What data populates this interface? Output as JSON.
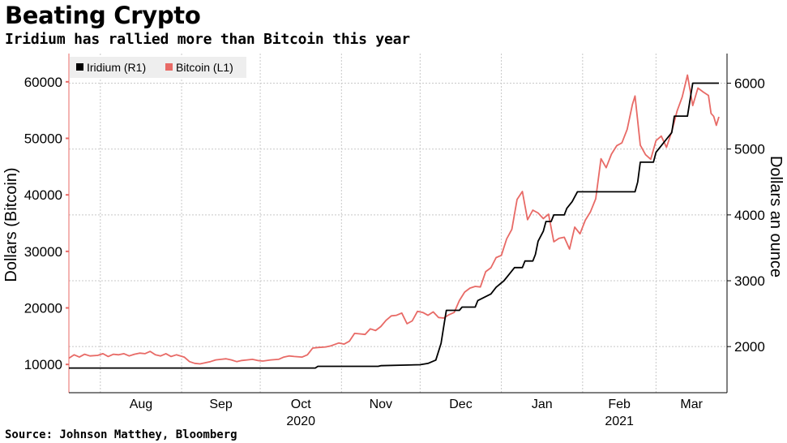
{
  "header": {
    "title": "Beating Crypto",
    "subtitle": "Iridium has rallied more than Bitcoin this year"
  },
  "footer": {
    "source": "Source: Johnson Matthey, Bloomberg"
  },
  "colors": {
    "iridium": "#000000",
    "bitcoin": "#e86a66",
    "grid": "#c8c8c8",
    "legend_bg": "#eeeeee"
  },
  "chart_data": {
    "type": "line",
    "title": "Beating Crypto",
    "subtitle": "Iridium has rallied more than Bitcoin this year",
    "legend": {
      "placement": "top-left",
      "entries": [
        "Iridium (R1)",
        "Bitcoin (L1)"
      ]
    },
    "grid": true,
    "x_axis": {
      "range": [
        "2020-07-20",
        "2021-03-25"
      ],
      "ticks": [
        "Aug",
        "Sep",
        "Oct",
        "Nov",
        "Dec",
        "Jan",
        "Feb",
        "Mar"
      ],
      "tick_dates": [
        "2020-08-01",
        "2020-09-01",
        "2020-10-01",
        "2020-11-01",
        "2020-12-01",
        "2021-01-01",
        "2021-02-01",
        "2021-03-01"
      ],
      "year_labels": [
        {
          "label": "2020",
          "date": "2020-10-01"
        },
        {
          "label": "2021",
          "date": "2021-02-01"
        }
      ]
    },
    "y_left": {
      "label": "Dollars (Bitcoin)",
      "range": [
        5000,
        65000
      ],
      "ticks": [
        10000,
        20000,
        30000,
        40000,
        50000,
        60000
      ]
    },
    "y_right": {
      "label": "Dollars an ounce",
      "range": [
        1300,
        6450
      ],
      "ticks": [
        2000,
        3000,
        4000,
        5000,
        6000
      ]
    },
    "series": [
      {
        "name": "Bitcoin (L1)",
        "axis": "left",
        "points": [
          [
            "2020-07-20",
            11100
          ],
          [
            "2020-07-22",
            11700
          ],
          [
            "2020-07-24",
            11300
          ],
          [
            "2020-07-26",
            11800
          ],
          [
            "2020-07-28",
            11500
          ],
          [
            "2020-07-31",
            11600
          ],
          [
            "2020-08-02",
            11900
          ],
          [
            "2020-08-04",
            11400
          ],
          [
            "2020-08-06",
            11800
          ],
          [
            "2020-08-08",
            11700
          ],
          [
            "2020-08-10",
            11900
          ],
          [
            "2020-08-12",
            11500
          ],
          [
            "2020-08-14",
            11800
          ],
          [
            "2020-08-16",
            12000
          ],
          [
            "2020-08-18",
            11900
          ],
          [
            "2020-08-20",
            12300
          ],
          [
            "2020-08-22",
            11700
          ],
          [
            "2020-08-24",
            11500
          ],
          [
            "2020-08-26",
            11900
          ],
          [
            "2020-08-28",
            11400
          ],
          [
            "2020-08-30",
            11700
          ],
          [
            "2020-09-02",
            11300
          ],
          [
            "2020-09-04",
            10500
          ],
          [
            "2020-09-06",
            10200
          ],
          [
            "2020-09-08",
            10100
          ],
          [
            "2020-09-10",
            10300
          ],
          [
            "2020-09-12",
            10500
          ],
          [
            "2020-09-14",
            10800
          ],
          [
            "2020-09-16",
            10900
          ],
          [
            "2020-09-18",
            11000
          ],
          [
            "2020-09-20",
            10800
          ],
          [
            "2020-09-22",
            10500
          ],
          [
            "2020-09-24",
            10700
          ],
          [
            "2020-09-26",
            10800
          ],
          [
            "2020-09-28",
            10900
          ],
          [
            "2020-09-30",
            10700
          ],
          [
            "2020-10-02",
            10600
          ],
          [
            "2020-10-05",
            10800
          ],
          [
            "2020-10-08",
            10900
          ],
          [
            "2020-10-10",
            11300
          ],
          [
            "2020-10-12",
            11500
          ],
          [
            "2020-10-14",
            11400
          ],
          [
            "2020-10-17",
            11300
          ],
          [
            "2020-10-19",
            11700
          ],
          [
            "2020-10-21",
            12900
          ],
          [
            "2020-10-23",
            13000
          ],
          [
            "2020-10-26",
            13100
          ],
          [
            "2020-10-28",
            13300
          ],
          [
            "2020-10-31",
            13800
          ],
          [
            "2020-11-02",
            13600
          ],
          [
            "2020-11-04",
            14100
          ],
          [
            "2020-11-06",
            15500
          ],
          [
            "2020-11-08",
            15400
          ],
          [
            "2020-11-10",
            15300
          ],
          [
            "2020-11-12",
            16300
          ],
          [
            "2020-11-14",
            16000
          ],
          [
            "2020-11-16",
            16700
          ],
          [
            "2020-11-18",
            17800
          ],
          [
            "2020-11-20",
            18600
          ],
          [
            "2020-11-22",
            18700
          ],
          [
            "2020-11-24",
            19100
          ],
          [
            "2020-11-26",
            17200
          ],
          [
            "2020-11-28",
            17700
          ],
          [
            "2020-11-30",
            19400
          ],
          [
            "2020-12-02",
            19200
          ],
          [
            "2020-12-04",
            18700
          ],
          [
            "2020-12-06",
            19300
          ],
          [
            "2020-12-08",
            18300
          ],
          [
            "2020-12-10",
            18200
          ],
          [
            "2020-12-12",
            18800
          ],
          [
            "2020-12-14",
            19200
          ],
          [
            "2020-12-16",
            21300
          ],
          [
            "2020-12-18",
            22800
          ],
          [
            "2020-12-20",
            23500
          ],
          [
            "2020-12-22",
            23800
          ],
          [
            "2020-12-24",
            23700
          ],
          [
            "2020-12-26",
            26400
          ],
          [
            "2020-12-28",
            27100
          ],
          [
            "2020-12-30",
            28900
          ],
          [
            "2021-01-01",
            29300
          ],
          [
            "2021-01-03",
            32200
          ],
          [
            "2021-01-05",
            33900
          ],
          [
            "2021-01-07",
            39200
          ],
          [
            "2021-01-09",
            40600
          ],
          [
            "2021-01-11",
            35600
          ],
          [
            "2021-01-13",
            37300
          ],
          [
            "2021-01-15",
            36800
          ],
          [
            "2021-01-17",
            35800
          ],
          [
            "2021-01-19",
            36600
          ],
          [
            "2021-01-21",
            31700
          ],
          [
            "2021-01-23",
            32300
          ],
          [
            "2021-01-25",
            32500
          ],
          [
            "2021-01-27",
            30400
          ],
          [
            "2021-01-29",
            34300
          ],
          [
            "2021-01-31",
            33100
          ],
          [
            "2021-02-02",
            35500
          ],
          [
            "2021-02-04",
            37000
          ],
          [
            "2021-02-06",
            39300
          ],
          [
            "2021-02-08",
            46400
          ],
          [
            "2021-02-10",
            44800
          ],
          [
            "2021-02-12",
            47200
          ],
          [
            "2021-02-14",
            48700
          ],
          [
            "2021-02-16",
            49200
          ],
          [
            "2021-02-18",
            51600
          ],
          [
            "2021-02-20",
            56000
          ],
          [
            "2021-02-21",
            57500
          ],
          [
            "2021-02-23",
            48800
          ],
          [
            "2021-02-25",
            47100
          ],
          [
            "2021-02-27",
            46300
          ],
          [
            "2021-03-01",
            49600
          ],
          [
            "2021-03-03",
            50400
          ],
          [
            "2021-03-05",
            48400
          ],
          [
            "2021-03-07",
            51200
          ],
          [
            "2021-03-09",
            54800
          ],
          [
            "2021-03-11",
            57300
          ],
          [
            "2021-03-13",
            61200
          ],
          [
            "2021-03-15",
            55800
          ],
          [
            "2021-03-17",
            58900
          ],
          [
            "2021-03-19",
            58200
          ],
          [
            "2021-03-21",
            57600
          ],
          [
            "2021-03-22",
            54400
          ],
          [
            "2021-03-23",
            53900
          ],
          [
            "2021-03-24",
            52300
          ],
          [
            "2021-03-25",
            53800
          ]
        ]
      },
      {
        "name": "Iridium (R1)",
        "axis": "right",
        "points": [
          [
            "2020-07-20",
            1675
          ],
          [
            "2020-10-22",
            1675
          ],
          [
            "2020-10-23",
            1700
          ],
          [
            "2020-11-15",
            1700
          ],
          [
            "2020-11-16",
            1710
          ],
          [
            "2020-12-01",
            1725
          ],
          [
            "2020-12-04",
            1745
          ],
          [
            "2020-12-07",
            1795
          ],
          [
            "2020-12-09",
            2050
          ],
          [
            "2020-12-10",
            2300
          ],
          [
            "2020-12-11",
            2550
          ],
          [
            "2020-12-16",
            2550
          ],
          [
            "2020-12-17",
            2600
          ],
          [
            "2020-12-22",
            2600
          ],
          [
            "2020-12-23",
            2700
          ],
          [
            "2020-12-28",
            2800
          ],
          [
            "2020-12-30",
            2900
          ],
          [
            "2021-01-02",
            3000
          ],
          [
            "2021-01-04",
            3100
          ],
          [
            "2021-01-06",
            3200
          ],
          [
            "2021-01-09",
            3200
          ],
          [
            "2021-01-10",
            3300
          ],
          [
            "2021-01-13",
            3300
          ],
          [
            "2021-01-14",
            3400
          ],
          [
            "2021-01-15",
            3600
          ],
          [
            "2021-01-17",
            3750
          ],
          [
            "2021-01-18",
            3900
          ],
          [
            "2021-01-20",
            3900
          ],
          [
            "2021-01-21",
            4000
          ],
          [
            "2021-01-25",
            4000
          ],
          [
            "2021-01-26",
            4100
          ],
          [
            "2021-01-28",
            4200
          ],
          [
            "2021-01-30",
            4350
          ],
          [
            "2021-02-21",
            4350
          ],
          [
            "2021-02-22",
            4500
          ],
          [
            "2021-02-23",
            4800
          ],
          [
            "2021-02-28",
            4800
          ],
          [
            "2021-03-01",
            4950
          ],
          [
            "2021-03-03",
            5050
          ],
          [
            "2021-03-05",
            5150
          ],
          [
            "2021-03-07",
            5250
          ],
          [
            "2021-03-08",
            5500
          ],
          [
            "2021-03-13",
            5500
          ],
          [
            "2021-03-14",
            5750
          ],
          [
            "2021-03-15",
            6000
          ],
          [
            "2021-03-16",
            6000
          ],
          [
            "2021-03-25",
            6000
          ]
        ]
      }
    ]
  }
}
